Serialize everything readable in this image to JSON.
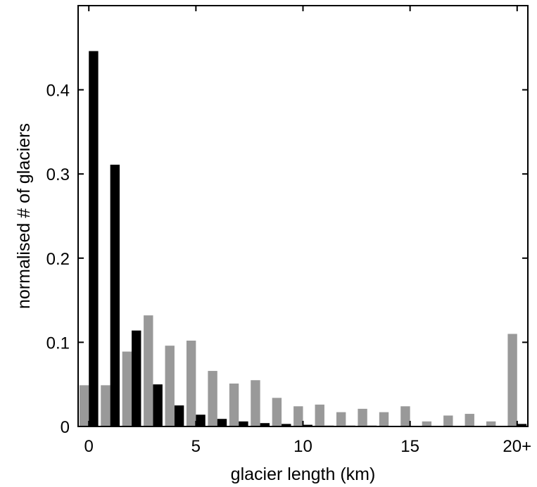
{
  "chart_data": {
    "type": "bar",
    "title": "",
    "xlabel": "glacier length (km)",
    "ylabel": "normalised # of glaciers",
    "xlim": [
      -0.5,
      20.5
    ],
    "ylim": [
      0,
      0.5
    ],
    "x_ticks": [
      {
        "value": 0,
        "label": "0"
      },
      {
        "value": 5,
        "label": "5"
      },
      {
        "value": 10,
        "label": "10"
      },
      {
        "value": 15,
        "label": "15"
      },
      {
        "value": 20,
        "label": "20+"
      }
    ],
    "y_ticks": [
      {
        "value": 0,
        "label": "0"
      },
      {
        "value": 0.1,
        "label": "0.1"
      },
      {
        "value": 0.2,
        "label": "0.2"
      },
      {
        "value": 0.3,
        "label": "0.3"
      },
      {
        "value": 0.4,
        "label": "0.4"
      }
    ],
    "categories": [
      0,
      1,
      2,
      3,
      4,
      5,
      6,
      7,
      8,
      9,
      10,
      11,
      12,
      13,
      14,
      15,
      16,
      17,
      18,
      19,
      20
    ],
    "grid": false,
    "legend": "none",
    "series": [
      {
        "color": "#999999",
        "values": [
          0.049,
          0.049,
          0.089,
          0.132,
          0.096,
          0.102,
          0.066,
          0.051,
          0.055,
          0.034,
          0.024,
          0.026,
          0.017,
          0.021,
          0.017,
          0.024,
          0.006,
          0.013,
          0.015,
          0.006,
          0.11
        ]
      },
      {
        "color": "#000000",
        "values": [
          0.446,
          0.311,
          0.114,
          0.05,
          0.025,
          0.014,
          0.009,
          0.006,
          0.004,
          0.003,
          0.002,
          0.001,
          0.001,
          0.001,
          0.0005,
          0.0005,
          0.0005,
          0.0005,
          0.0005,
          0.0005,
          0.003
        ]
      }
    ]
  }
}
